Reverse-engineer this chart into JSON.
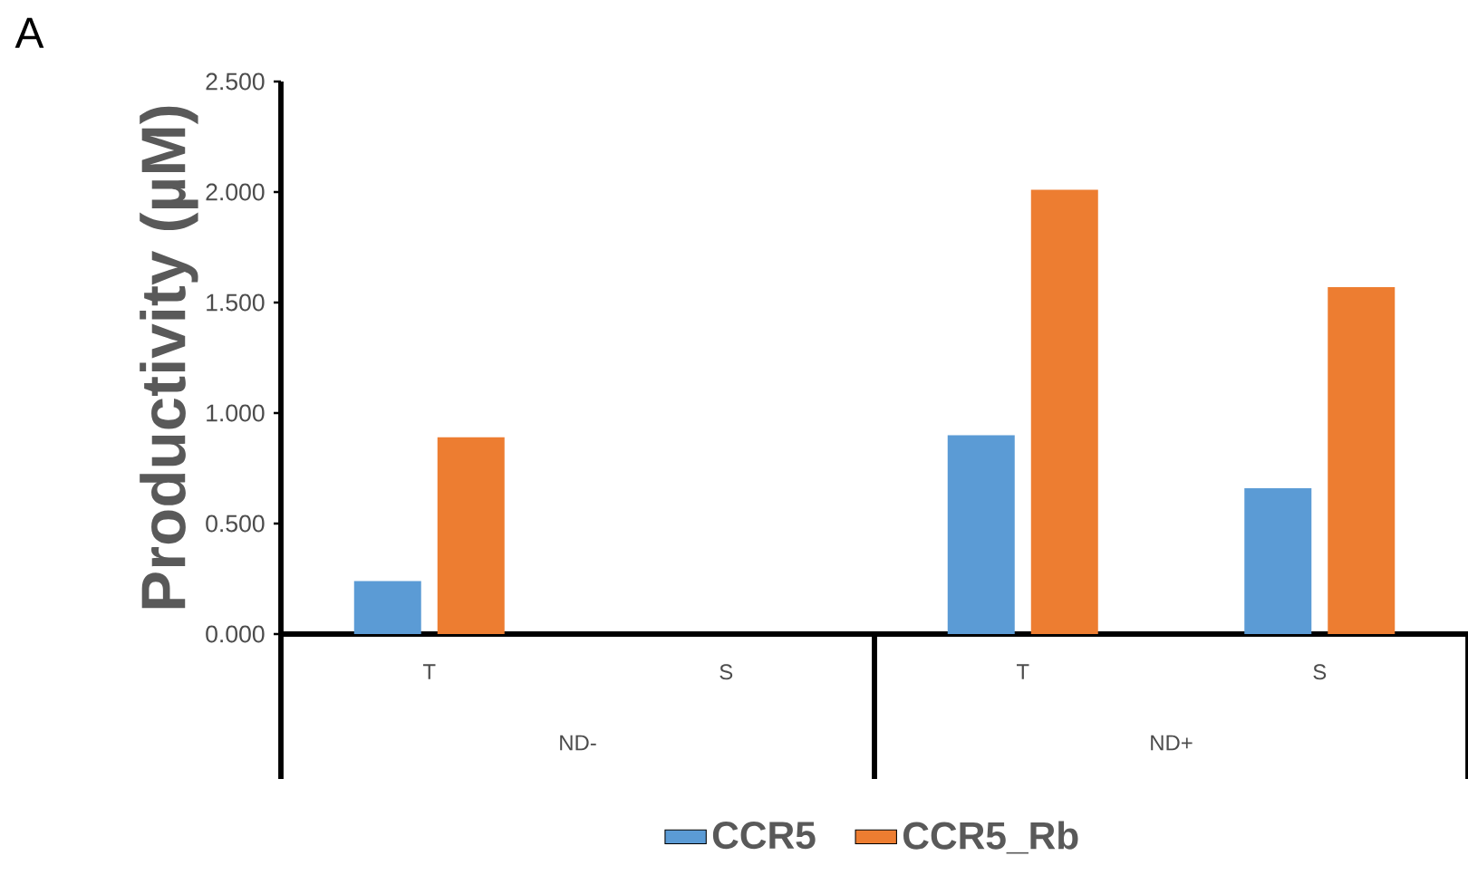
{
  "chart_data": {
    "type": "bar",
    "ylabel": "Productivity (µM)",
    "categories": [
      "T",
      "S",
      "T",
      "S"
    ],
    "series": [
      {
        "name": "CCR5",
        "color": "#5b9bd5",
        "values": [
          0.24,
          null,
          0.9,
          0.66
        ]
      },
      {
        "name": "CCR5_Rb",
        "color": "#ed7d31",
        "values": [
          0.89,
          null,
          2.01,
          1.57
        ]
      }
    ],
    "ylim": [
      0,
      2.5
    ],
    "yticks": [
      {
        "value": 0,
        "label": "0.000"
      },
      {
        "value": 0.5,
        "label": "0.500"
      },
      {
        "value": 1,
        "label": "1.000"
      },
      {
        "value": 1.5,
        "label": "1.500"
      },
      {
        "value": 2,
        "label": "2.000"
      },
      {
        "value": 2.5,
        "label": "2.500"
      }
    ],
    "legend": "bottom",
    "annotations": [
      "A",
      "ND-",
      "ND+"
    ]
  }
}
